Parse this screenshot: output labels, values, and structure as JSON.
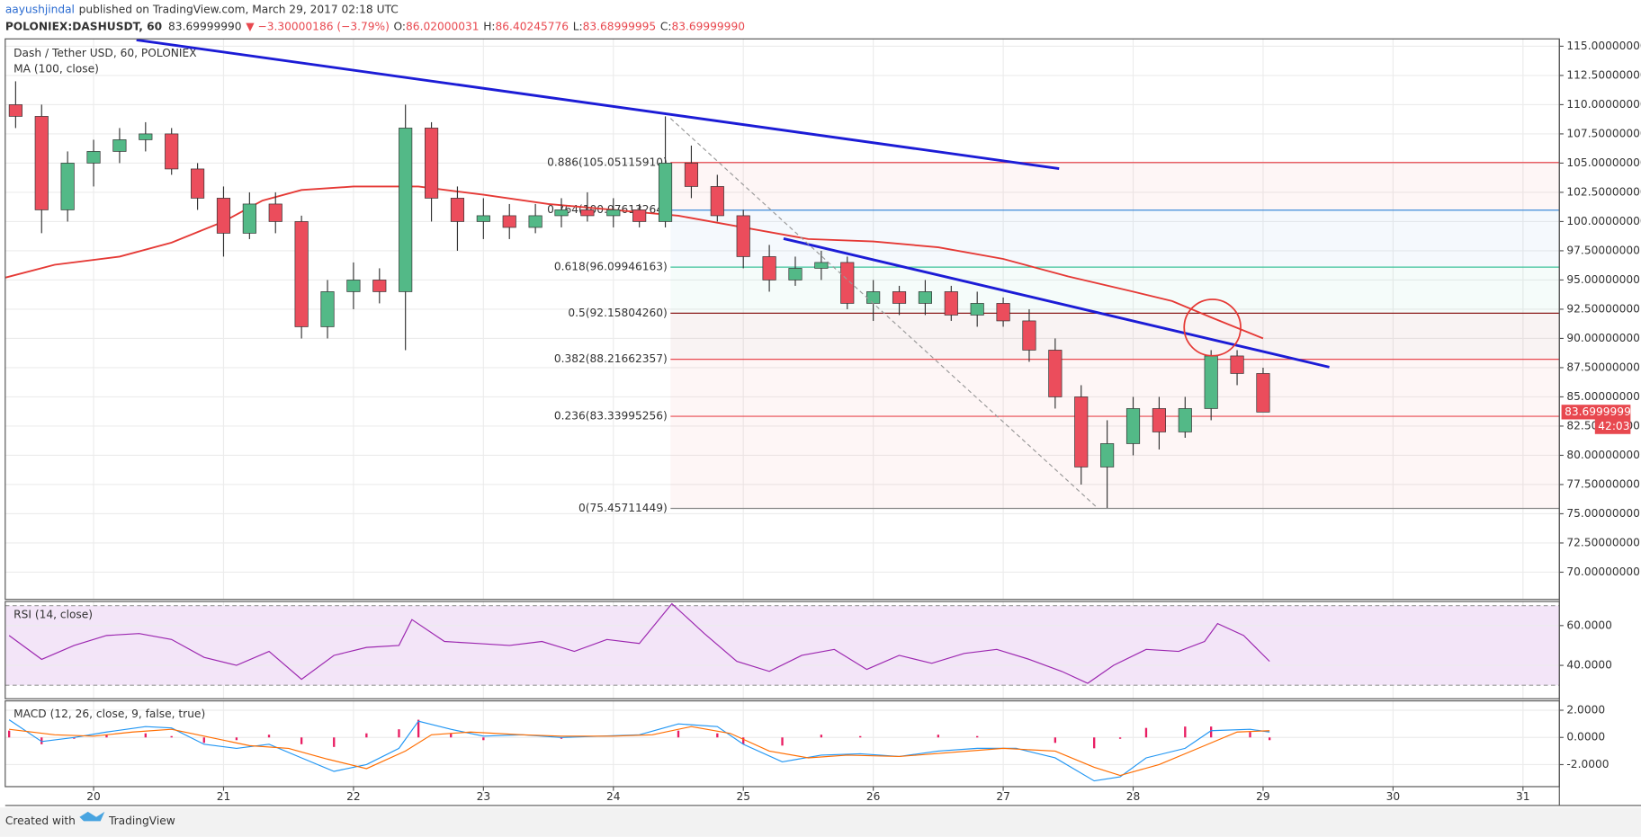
{
  "header": {
    "author": "aayushjindal",
    "published": "published on TradingView.com, March 29, 2017 02:18 UTC",
    "symbol": "POLONIEX:DASHUSDT, 60",
    "price": "83.69999990",
    "change": "▼ −3.30000186 (−3.79%)",
    "ohlc": [
      {
        "key": "O:",
        "value": "86.02000031"
      },
      {
        "key": "H:",
        "value": "86.40245776"
      },
      {
        "key": "L:",
        "value": "83.68999995"
      },
      {
        "key": "C:",
        "value": "83.69999990"
      }
    ]
  },
  "footer": {
    "created": "Created with",
    "brand": "TradingView"
  },
  "chart_data": [
    {
      "type": "candlestick",
      "title": "Dash / Tether USD, 60, POLONIEX",
      "indicator": "MA (100, close)",
      "x": [
        19.4,
        19.6,
        19.8,
        20.0,
        20.2,
        20.4,
        20.6,
        20.8,
        21.0,
        21.2,
        21.4,
        21.6,
        21.8,
        22.0,
        22.2,
        22.4,
        22.6,
        22.8,
        23.0,
        23.2,
        23.4,
        23.6,
        23.8,
        24.0,
        24.2,
        24.4,
        24.6,
        24.8,
        25.0,
        25.2,
        25.4,
        25.6,
        25.8,
        26.0,
        26.2,
        26.4,
        26.6,
        26.8,
        27.0,
        27.2,
        27.4,
        27.6,
        27.8,
        28.0,
        28.2,
        28.4,
        28.6,
        28.8,
        29.0
      ],
      "open": [
        110,
        109,
        101,
        105,
        106,
        107,
        107.5,
        104.5,
        102,
        99,
        101.5,
        100,
        91,
        94,
        95,
        94,
        108,
        102,
        100,
        100.5,
        99.5,
        100.5,
        101,
        100.5,
        101,
        100,
        105,
        103,
        100.5,
        97,
        95,
        96,
        96.5,
        93,
        94,
        93,
        94,
        92,
        93,
        91.5,
        89,
        85,
        79,
        81,
        84,
        82,
        84,
        88.5,
        87
      ],
      "high": [
        112,
        110,
        106,
        107,
        108,
        108.5,
        108,
        105,
        103,
        102.5,
        102.5,
        100.5,
        95,
        96.5,
        96,
        110,
        108.5,
        103,
        102,
        101.5,
        101.5,
        102,
        102.5,
        102,
        101.5,
        109,
        106.5,
        104,
        101,
        98,
        97,
        97.5,
        97,
        95,
        94.5,
        95,
        94.5,
        94,
        93.5,
        92.5,
        90,
        86,
        83,
        85,
        85,
        85,
        89,
        89,
        87.5
      ],
      "low": [
        108,
        99,
        100,
        103,
        105,
        106,
        104,
        101,
        97,
        98.5,
        99,
        90,
        90,
        92.5,
        93,
        89,
        100,
        97.5,
        98.5,
        98.5,
        99,
        99.5,
        100,
        99.5,
        99.5,
        99.5,
        102,
        100,
        96,
        94,
        94.5,
        95,
        92.5,
        91.5,
        92,
        92,
        91.5,
        91,
        91,
        88,
        84,
        77.5,
        75.5,
        80,
        80.5,
        81.5,
        83,
        86,
        83.69
      ],
      "close": [
        109,
        101,
        105,
        106,
        107,
        107.5,
        104.5,
        102,
        99,
        101.5,
        100,
        91,
        94,
        95,
        94,
        108,
        102,
        100,
        100.5,
        99.5,
        100.5,
        101,
        100.5,
        101,
        100,
        105,
        103,
        100.5,
        97,
        95,
        96,
        96.5,
        93,
        94,
        93,
        94,
        92,
        93,
        91.5,
        89,
        85,
        79,
        81,
        84,
        82,
        84,
        88.5,
        87,
        83.7
      ],
      "up_color": "#53b987",
      "down_color": "#eb4d5c",
      "ma": {
        "color": "#e53935",
        "x": [
          19.32,
          19.7,
          20.2,
          20.6,
          21.0,
          21.3,
          21.6,
          22.0,
          22.5,
          23.0,
          23.5,
          24.0,
          24.5,
          25.0,
          25.5,
          26.0,
          26.5,
          27.0,
          27.5,
          28.0,
          28.3,
          28.6,
          29.0
        ],
        "values": [
          95.2,
          96.3,
          97,
          98.2,
          100,
          101.8,
          102.7,
          103,
          103,
          102.3,
          101.5,
          101,
          100.5,
          99.5,
          98.5,
          98.3,
          97.8,
          96.8,
          95.3,
          94,
          93.2,
          91.8,
          90
        ]
      },
      "fib_start": 24.44,
      "fib_levels": [
        {
          "label": "0.886(105.05115910)",
          "value": 105.0511591,
          "color": "#e8484f"
        },
        {
          "label": "0.764(100.97613264)",
          "value": 100.97613264,
          "color": "#3d8bd9"
        },
        {
          "label": "0.618(96.09946163)",
          "value": 96.09946163,
          "color": "#3cc29a"
        },
        {
          "label": "0.5(92.15804260)",
          "value": 92.1580426,
          "color": "#8b1a1a"
        },
        {
          "label": "0.382(88.21662357)",
          "value": 88.21662357,
          "color": "#e8484f"
        },
        {
          "label": "0.236(83.33995256)",
          "value": 83.33995256,
          "color": "#e8484f"
        },
        {
          "label": "0(75.45711449)",
          "value": 75.45711449,
          "color": "#888888"
        }
      ],
      "trendlines": [
        {
          "color": "#1c1cd6",
          "x": [
            20.33,
            27.43
          ],
          "values": [
            115.54,
            104.53
          ]
        },
        {
          "color": "#1c1cd6",
          "x": [
            25.31,
            29.51
          ],
          "values": [
            98.54,
            87.54
          ]
        }
      ],
      "dashed_line": {
        "color": "#999999",
        "x": [
          24.44,
          27.72
        ],
        "values": [
          108.83,
          75.55
        ]
      },
      "circle": {
        "color": "#e53935",
        "x": 28.61,
        "value": 90.93
      },
      "last_price": {
        "value": 83.7,
        "label": "83.69999990",
        "countdown": "42:03",
        "color": "#e8484f"
      },
      "xlim": [
        19.32,
        31.28
      ],
      "xticks": [
        20,
        21,
        22,
        23,
        24,
        25,
        26,
        27,
        28,
        29,
        30,
        31
      ],
      "ylim": [
        67.67,
        115.63
      ],
      "yticks": [
        {
          "value": 115,
          "label": "115.00000000"
        },
        {
          "value": 112.5,
          "label": "112.50000000"
        },
        {
          "value": 110,
          "label": "110.00000000"
        },
        {
          "value": 107.5,
          "label": "107.50000000"
        },
        {
          "value": 105,
          "label": "105.00000000"
        },
        {
          "value": 102.5,
          "label": "102.50000000"
        },
        {
          "value": 100,
          "label": "100.00000000"
        },
        {
          "value": 97.5,
          "label": "97.50000000"
        },
        {
          "value": 95,
          "label": "95.00000000"
        },
        {
          "value": 92.5,
          "label": "92.50000000"
        },
        {
          "value": 90,
          "label": "90.00000000"
        },
        {
          "value": 87.5,
          "label": "87.50000000"
        },
        {
          "value": 85,
          "label": "85.00000000"
        },
        {
          "value": 82.5,
          "label": "82.50000000"
        },
        {
          "value": 80,
          "label": "80.00000000"
        },
        {
          "value": 77.5,
          "label": "77.50000000"
        },
        {
          "value": 75,
          "label": "75.00000000"
        },
        {
          "value": 72.5,
          "label": "72.50000000"
        },
        {
          "value": 70,
          "label": "70.00000000"
        }
      ],
      "grid": true
    },
    {
      "type": "line",
      "title": "RSI (14, close)",
      "color": "#9c27b0",
      "band": [
        30,
        70
      ],
      "band_color": "#f3e5f8",
      "x": [
        19.35,
        19.6,
        19.85,
        20.1,
        20.35,
        20.6,
        20.85,
        21.1,
        21.35,
        21.6,
        21.85,
        22.1,
        22.35,
        22.45,
        22.7,
        22.95,
        23.2,
        23.45,
        23.7,
        23.95,
        24.2,
        24.45,
        24.7,
        24.95,
        25.2,
        25.45,
        25.7,
        25.95,
        26.2,
        26.45,
        26.7,
        26.95,
        27.2,
        27.45,
        27.65,
        27.85,
        28.1,
        28.35,
        28.55,
        28.65,
        28.85,
        29.05
      ],
      "values": [
        55,
        43,
        50,
        55,
        56,
        53,
        44,
        40,
        47,
        33,
        45,
        49,
        50,
        63,
        52,
        51,
        50,
        52,
        47,
        53,
        51,
        71,
        56,
        42,
        37,
        45,
        48,
        38,
        45,
        41,
        46,
        48,
        43,
        37,
        31,
        40,
        48,
        47,
        52,
        61,
        55,
        42
      ],
      "ylim": [
        23.2,
        72.1
      ],
      "yticks": [
        {
          "value": 60,
          "label": "60.0000"
        },
        {
          "value": 40,
          "label": "40.0000"
        }
      ]
    },
    {
      "type": "line",
      "title": "MACD (12, 26, close, 9, false, true)",
      "x": [
        19.35,
        19.6,
        19.85,
        20.1,
        20.4,
        20.6,
        20.85,
        21.1,
        21.35,
        21.6,
        21.85,
        22.1,
        22.35,
        22.5,
        22.75,
        23.0,
        23.3,
        23.6,
        23.9,
        24.2,
        24.5,
        24.8,
        25.0,
        25.3,
        25.6,
        25.9,
        26.2,
        26.5,
        26.8,
        27.1,
        27.4,
        27.7,
        27.9,
        28.1,
        28.4,
        28.6,
        28.9,
        29.05
      ],
      "histogram": {
        "color": "#e91e63",
        "values": [
          0.5,
          -0.5,
          -0.1,
          0.2,
          0.3,
          0.1,
          -0.4,
          -0.2,
          0.2,
          -0.5,
          -0.7,
          0.3,
          0.6,
          1.3,
          0.3,
          -0.2,
          0,
          -0.1,
          0,
          0,
          0.5,
          0.3,
          -0.5,
          -0.6,
          0.2,
          0.1,
          0,
          0.2,
          0.1,
          0,
          -0.4,
          -0.8,
          -0.1,
          0.7,
          0.8,
          0.8,
          0.4,
          -0.2
        ]
      },
      "series": [
        {
          "color": "#2196f3",
          "x": [
            19.35,
            19.6,
            19.85,
            20.1,
            20.4,
            20.6,
            20.85,
            21.1,
            21.35,
            21.6,
            21.85,
            22.1,
            22.35,
            22.5,
            22.75,
            23.0,
            23.3,
            23.6,
            23.9,
            24.2,
            24.5,
            24.8,
            25.0,
            25.3,
            25.6,
            25.9,
            26.2,
            26.5,
            26.8,
            27.1,
            27.4,
            27.7,
            27.9,
            28.1,
            28.4,
            28.6,
            28.9,
            29.05
          ],
          "values": [
            1.3,
            -0.3,
            0,
            0.4,
            0.8,
            0.7,
            -0.5,
            -0.8,
            -0.5,
            -1.5,
            -2.5,
            -2.0,
            -0.8,
            1.2,
            0.6,
            0.1,
            0.2,
            0,
            0.1,
            0.2,
            1.0,
            0.8,
            -0.5,
            -1.8,
            -1.3,
            -1.2,
            -1.4,
            -1.0,
            -0.8,
            -0.8,
            -1.5,
            -3.2,
            -2.9,
            -1.5,
            -0.8,
            0.5,
            0.6,
            0.4
          ]
        },
        {
          "color": "#ff6d00",
          "x": [
            19.35,
            19.7,
            20.0,
            20.3,
            20.6,
            20.9,
            21.2,
            21.5,
            21.8,
            22.1,
            22.4,
            22.6,
            22.9,
            23.3,
            23.6,
            24.0,
            24.3,
            24.6,
            24.9,
            25.2,
            25.5,
            25.8,
            26.2,
            26.6,
            27.0,
            27.4,
            27.7,
            27.9,
            28.2,
            28.5,
            28.8,
            29.05
          ],
          "values": [
            0.6,
            0.2,
            0.1,
            0.4,
            0.6,
            0,
            -0.6,
            -0.8,
            -1.6,
            -2.3,
            -1.0,
            0.2,
            0.4,
            0.2,
            0.1,
            0.1,
            0.2,
            0.8,
            0.3,
            -1.0,
            -1.5,
            -1.3,
            -1.4,
            -1.1,
            -0.8,
            -1.0,
            -2.2,
            -2.8,
            -2.0,
            -0.8,
            0.4,
            0.5
          ]
        }
      ],
      "ylim": [
        -3.62,
        2.69
      ],
      "yticks": [
        {
          "value": 2,
          "label": "2.0000"
        },
        {
          "value": 0,
          "label": "0.0000"
        },
        {
          "value": -2,
          "label": "-2.0000"
        }
      ]
    }
  ]
}
